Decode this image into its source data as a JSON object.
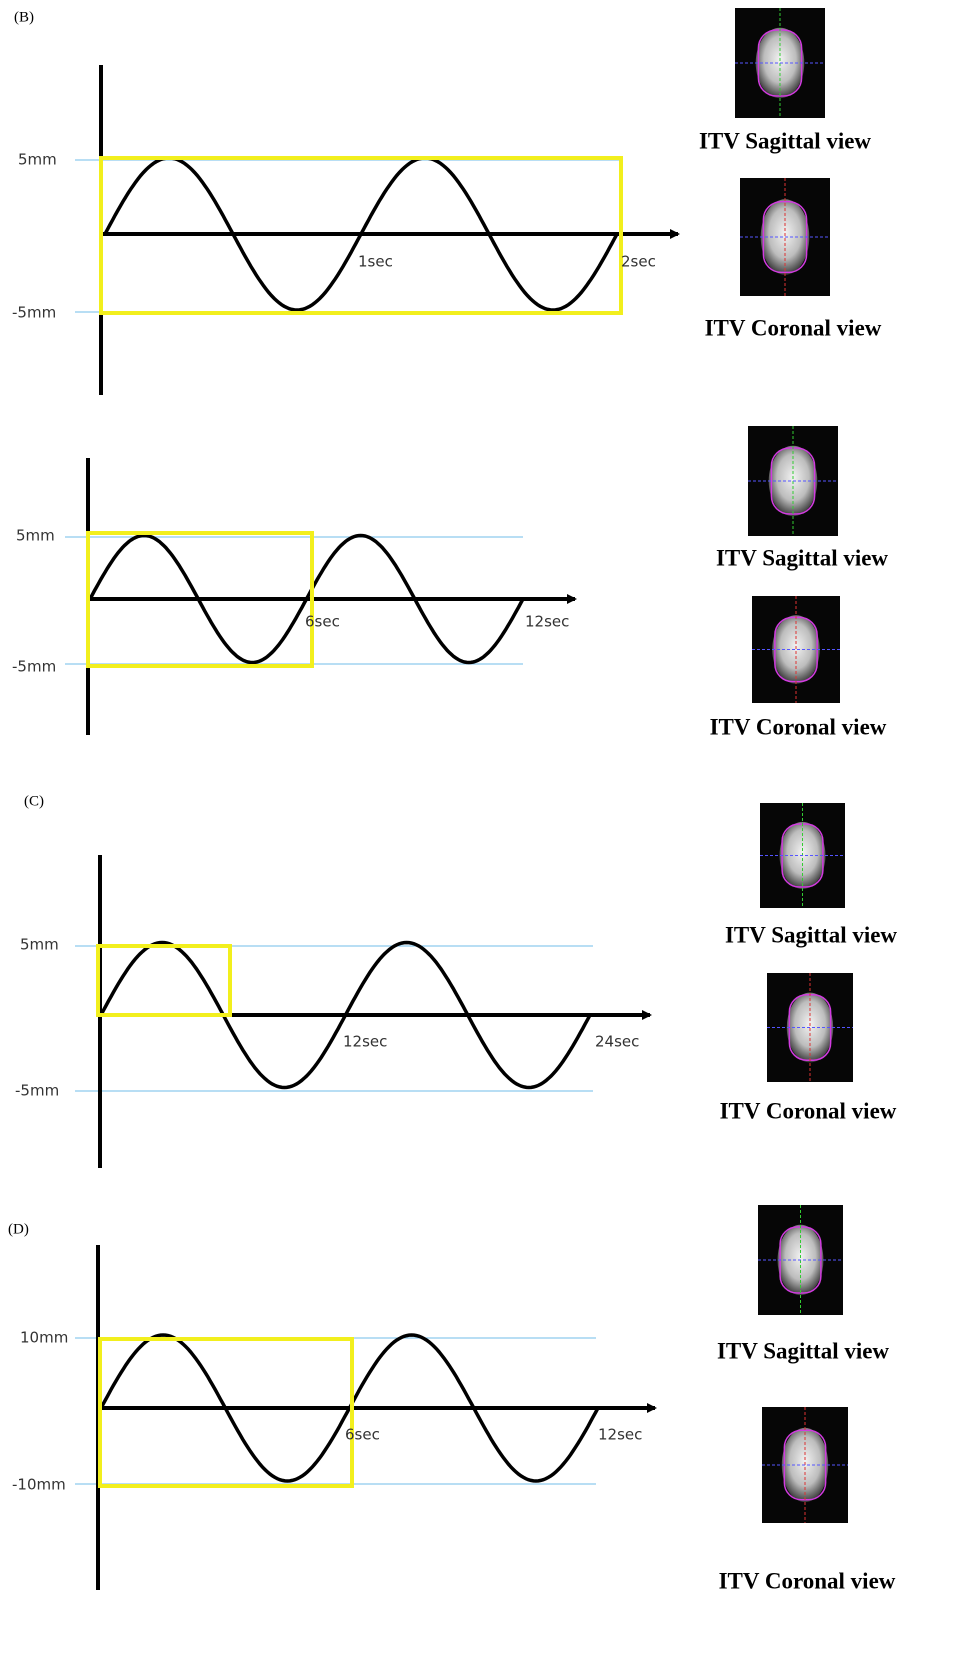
{
  "panels": [
    {
      "label": "(B)",
      "y_labels": [
        "5mm",
        "-5mm"
      ],
      "x_labels": [
        "1sec",
        "2sec"
      ],
      "captions": [
        "ITV Sagittal view",
        "ITV Coronal view"
      ]
    },
    {
      "y_labels": [
        "5mm",
        "-5mm"
      ],
      "x_labels": [
        "6sec",
        "12sec"
      ],
      "captions": [
        "ITV Sagittal view",
        "ITV Coronal view"
      ]
    },
    {
      "label": "(C)",
      "y_labels": [
        "5mm",
        "-5mm"
      ],
      "x_labels": [
        "12sec",
        "24sec"
      ],
      "captions": [
        "ITV Sagittal view",
        "ITV Coronal view"
      ]
    },
    {
      "label": "(D)",
      "y_labels": [
        "10mm",
        "-10mm"
      ],
      "x_labels": [
        "6sec",
        "12sec"
      ],
      "captions": [
        "ITV Sagittal view",
        "ITV Coronal view"
      ]
    }
  ]
}
